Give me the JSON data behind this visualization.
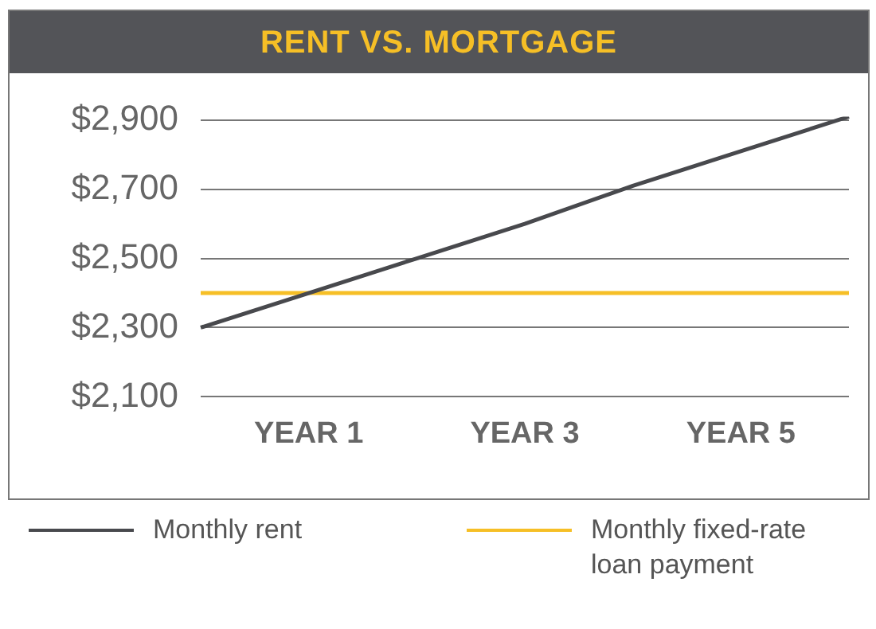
{
  "chart_data": {
    "type": "line",
    "title": "RENT VS. MORTGAGE",
    "categories": [
      null,
      "YEAR 1",
      null,
      "YEAR 3",
      null,
      "YEAR 5",
      null
    ],
    "ylim": [
      2100,
      2910
    ],
    "yticks": [
      {
        "value": 2100,
        "label": "$2,100"
      },
      {
        "value": 2300,
        "label": "$2,300"
      },
      {
        "value": 2500,
        "label": "$2,500"
      },
      {
        "value": 2700,
        "label": "$2,700"
      },
      {
        "value": 2900,
        "label": "$2,900"
      }
    ],
    "series": [
      {
        "name": "Monthly rent",
        "color": "#48494d",
        "values": [
          2300,
          2400,
          2500,
          2600,
          2710,
          2810,
          2910
        ]
      },
      {
        "name": "Monthly fixed-rate loan payment",
        "color": "#f6bf26",
        "values": [
          2400,
          2400,
          2400,
          2400,
          2400,
          2400,
          2400
        ]
      }
    ],
    "grid": "y",
    "legend": "bottom",
    "marker": "none",
    "line_style": "solid"
  }
}
